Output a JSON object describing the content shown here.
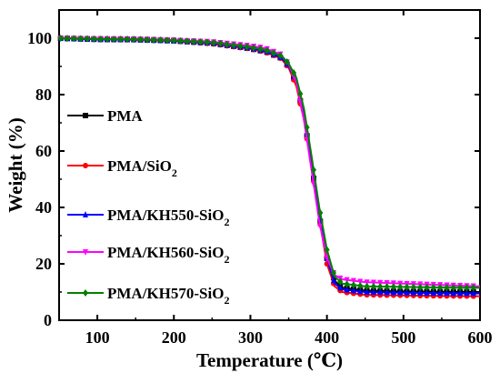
{
  "chart_data": {
    "type": "line",
    "title": "",
    "xlabel": "Temperature (℃)",
    "ylabel": "Weight (%)",
    "xlim": [
      50,
      600
    ],
    "ylim": [
      0,
      110
    ],
    "xticks": [
      100,
      200,
      300,
      400,
      500,
      600
    ],
    "yticks": [
      0,
      20,
      40,
      60,
      80,
      100
    ],
    "x_tick_labels": [
      "100",
      "200",
      "300",
      "400",
      "500",
      "600"
    ],
    "y_tick_labels": [
      "0",
      "20",
      "40",
      "60",
      "80",
      "100"
    ],
    "grid": false,
    "legend_position": "left",
    "series": [
      {
        "name": "PMA",
        "legend_main": "PMA",
        "legend_sub": "",
        "legend_tail": "",
        "color": "#000000",
        "marker": "square",
        "x": [
          50,
          100,
          150,
          200,
          250,
          300,
          320,
          340,
          350,
          360,
          370,
          380,
          390,
          400,
          410,
          420,
          450,
          500,
          550,
          600
        ],
        "y": [
          100,
          99.6,
          99.5,
          99.1,
          98.2,
          96.3,
          95.2,
          93,
          90,
          84,
          72,
          55,
          37,
          22,
          14,
          11.5,
          10.5,
          10.2,
          10.1,
          10
        ]
      },
      {
        "name": "PMA/SiO2",
        "legend_main": "PMA/SiO",
        "legend_sub": "2",
        "legend_tail": "",
        "color": "#ff0000",
        "marker": "circle",
        "x": [
          50,
          100,
          150,
          200,
          250,
          300,
          320,
          340,
          350,
          360,
          370,
          380,
          390,
          400,
          410,
          420,
          450,
          500,
          550,
          600
        ],
        "y": [
          100,
          99.6,
          99.4,
          99,
          98,
          96.2,
          95,
          92.8,
          89.5,
          83,
          71,
          54,
          36,
          20,
          12,
          10,
          9,
          8.8,
          8.6,
          8.5
        ]
      },
      {
        "name": "PMA/KH550-SiO2",
        "legend_main": "PMA/KH550-SiO",
        "legend_sub": "2",
        "legend_tail": "",
        "color": "#0000ff",
        "marker": "triangle",
        "x": [
          50,
          100,
          150,
          200,
          250,
          300,
          320,
          340,
          350,
          360,
          370,
          380,
          390,
          400,
          410,
          420,
          450,
          500,
          550,
          600
        ],
        "y": [
          100,
          99.6,
          99.5,
          99.1,
          98.3,
          96.5,
          95.4,
          93.2,
          90.2,
          84.5,
          73,
          56,
          38,
          22,
          13,
          11,
          10,
          9.8,
          9.6,
          9.5
        ]
      },
      {
        "name": "PMA/KH560-SiO2",
        "legend_main": "PMA/KH560-SiO",
        "legend_sub": "2",
        "legend_tail": "",
        "color": "#ff00ff",
        "marker": "triangle-down",
        "x": [
          50,
          100,
          150,
          200,
          250,
          300,
          320,
          340,
          350,
          360,
          370,
          380,
          390,
          400,
          410,
          420,
          450,
          500,
          550,
          600
        ],
        "y": [
          100,
          99.8,
          99.7,
          99.3,
          98.7,
          97.3,
          96.4,
          94.2,
          90.8,
          84.5,
          71,
          53,
          35,
          22,
          16,
          14.5,
          13.5,
          13,
          12.5,
          12
        ]
      },
      {
        "name": "PMA/KH570-SiO2",
        "legend_main": "PMA/KH570-SiO",
        "legend_sub": "2",
        "legend_tail": "",
        "color": "#008000",
        "marker": "diamond",
        "x": [
          50,
          100,
          150,
          200,
          250,
          300,
          320,
          340,
          350,
          360,
          370,
          380,
          390,
          400,
          410,
          420,
          450,
          500,
          550,
          600
        ],
        "y": [
          100,
          99.7,
          99.6,
          99.2,
          98.5,
          96.8,
          95.8,
          93.8,
          91,
          86,
          75,
          58,
          40,
          25,
          15.5,
          13,
          12,
          11.8,
          11.6,
          11.5
        ]
      }
    ]
  }
}
